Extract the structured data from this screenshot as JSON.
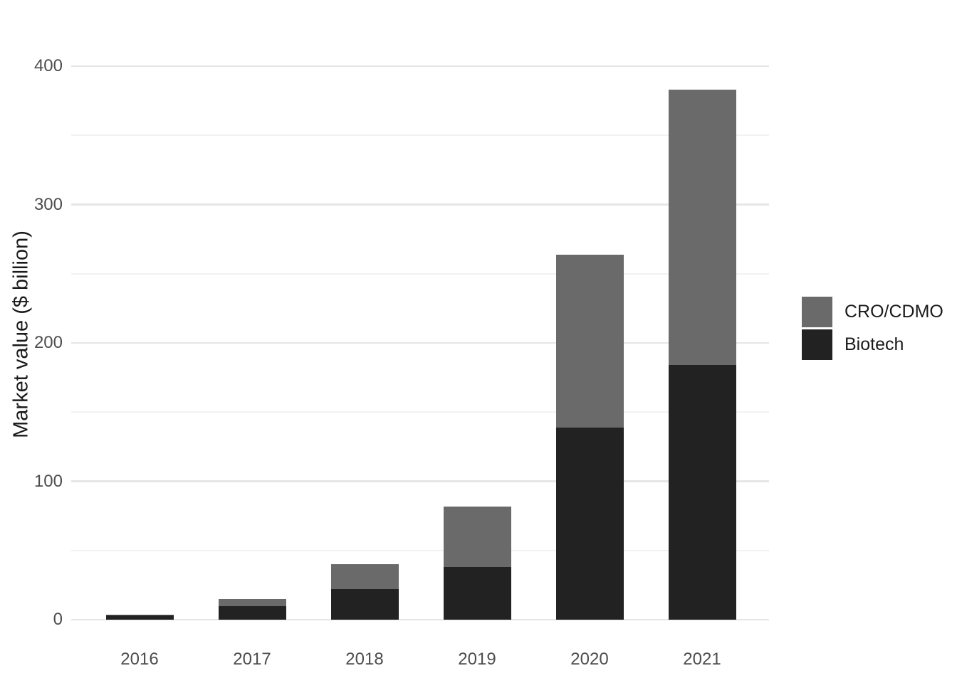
{
  "chart_data": {
    "type": "bar",
    "stacked": true,
    "title": "",
    "xlabel": "",
    "ylabel": "Market value ($ billion)",
    "categories": [
      "2016",
      "2017",
      "2018",
      "2019",
      "2020",
      "2021"
    ],
    "series": [
      {
        "name": "Biotech",
        "color": "#222222",
        "values": [
          3,
          10,
          22,
          38,
          139,
          184
        ]
      },
      {
        "name": "CRO/CDMO",
        "color": "#6a6a6a",
        "values": [
          0.5,
          5,
          18,
          44,
          125,
          199
        ]
      }
    ],
    "totals": [
      3.5,
      15,
      40,
      82,
      264,
      383
    ],
    "ylim": [
      0,
      400
    ],
    "yticks": [
      0,
      100,
      200,
      300,
      400
    ],
    "yticks_minor": [
      50,
      150,
      250,
      350
    ],
    "grid": "horizontal-only",
    "legend_position": "right",
    "legend_order": [
      "CRO/CDMO",
      "Biotech"
    ]
  },
  "legend": {
    "items": [
      {
        "label": "CRO/CDMO",
        "color": "#6a6a6a"
      },
      {
        "label": "Biotech",
        "color": "#222222"
      }
    ]
  },
  "colors": {
    "background": "#ffffff",
    "major_gridline": "#e6e6e6",
    "minor_gridline": "#f2f2f2",
    "tick_label": "#4d4d4d",
    "axis_title": "#1a1a1a"
  }
}
